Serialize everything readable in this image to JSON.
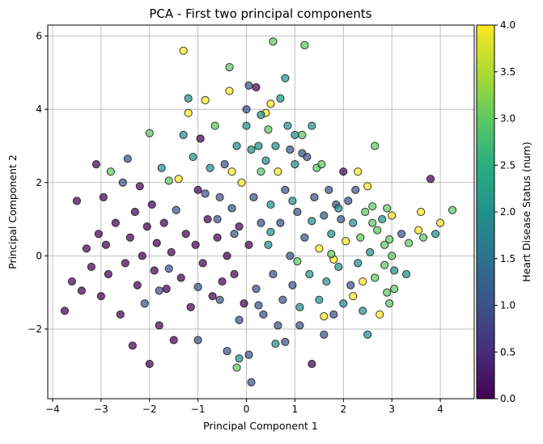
{
  "chart_data": {
    "type": "scatter",
    "title": "PCA - First two principal components",
    "xlabel": "Principal Component 1",
    "ylabel": "Principal Component 2",
    "xlim": [
      -4.1,
      4.7
    ],
    "ylim": [
      -3.9,
      6.3
    ],
    "xticks": [
      -4,
      -3,
      -2,
      -1,
      0,
      1,
      2,
      3,
      4
    ],
    "yticks": [
      -2,
      0,
      2,
      4,
      6
    ],
    "xtick_labels": [
      "−4",
      "−3",
      "−2",
      "−1",
      "0",
      "1",
      "2",
      "3",
      "4"
    ],
    "ytick_labels": [
      "−2",
      "0",
      "2",
      "4",
      "6"
    ],
    "grid": true,
    "colorbar": {
      "label": "Heart Disease Status (num)",
      "min": 0.0,
      "max": 4.0,
      "ticks": [
        0.0,
        0.5,
        1.0,
        1.5,
        2.0,
        2.5,
        3.0,
        3.5,
        4.0
      ],
      "tick_labels": [
        "0.0",
        "0.5",
        "1.0",
        "1.5",
        "2.0",
        "2.5",
        "3.0",
        "3.5",
        "4.0"
      ],
      "colormap": "viridis"
    },
    "points": [
      {
        "x": -3.75,
        "y": -1.5,
        "c": 0
      },
      {
        "x": -3.6,
        "y": -0.7,
        "c": 0
      },
      {
        "x": -3.5,
        "y": 1.5,
        "c": 0
      },
      {
        "x": -3.4,
        "y": -0.95,
        "c": 0
      },
      {
        "x": -3.3,
        "y": 0.2,
        "c": 0
      },
      {
        "x": -3.2,
        "y": -0.3,
        "c": 0
      },
      {
        "x": -3.1,
        "y": 2.5,
        "c": 0
      },
      {
        "x": -3.05,
        "y": 0.6,
        "c": 0
      },
      {
        "x": -3.0,
        "y": -1.1,
        "c": 0
      },
      {
        "x": -2.95,
        "y": 1.6,
        "c": 0
      },
      {
        "x": -2.9,
        "y": 0.3,
        "c": 0
      },
      {
        "x": -2.85,
        "y": -0.5,
        "c": 0
      },
      {
        "x": -2.8,
        "y": 2.3,
        "c": 3
      },
      {
        "x": -2.7,
        "y": 0.9,
        "c": 0
      },
      {
        "x": -2.6,
        "y": -1.6,
        "c": 0
      },
      {
        "x": -2.55,
        "y": 2.0,
        "c": 1
      },
      {
        "x": -2.5,
        "y": -0.2,
        "c": 0
      },
      {
        "x": -2.45,
        "y": 2.65,
        "c": 1
      },
      {
        "x": -2.4,
        "y": 0.5,
        "c": 0
      },
      {
        "x": -2.35,
        "y": -2.45,
        "c": 0
      },
      {
        "x": -2.3,
        "y": 1.2,
        "c": 0
      },
      {
        "x": -2.25,
        "y": -0.8,
        "c": 0
      },
      {
        "x": -2.2,
        "y": 1.9,
        "c": 0
      },
      {
        "x": -2.15,
        "y": 0.0,
        "c": 0
      },
      {
        "x": -2.1,
        "y": -1.3,
        "c": 1
      },
      {
        "x": -2.05,
        "y": 0.8,
        "c": 0
      },
      {
        "x": -2.0,
        "y": 3.35,
        "c": 3
      },
      {
        "x": -2.0,
        "y": -2.95,
        "c": 0
      },
      {
        "x": -1.95,
        "y": 1.4,
        "c": 0
      },
      {
        "x": -1.9,
        "y": -0.4,
        "c": 0
      },
      {
        "x": -1.85,
        "y": 0.35,
        "c": 0
      },
      {
        "x": -1.8,
        "y": -1.9,
        "c": 0
      },
      {
        "x": -1.75,
        "y": 2.4,
        "c": 2
      },
      {
        "x": -1.7,
        "y": 0.9,
        "c": 0
      },
      {
        "x": -1.65,
        "y": -0.9,
        "c": 0
      },
      {
        "x": -1.6,
        "y": 2.05,
        "c": 3
      },
      {
        "x": -1.55,
        "y": 0.1,
        "c": 0
      },
      {
        "x": -1.5,
        "y": -2.3,
        "c": 0
      },
      {
        "x": -1.45,
        "y": 1.25,
        "c": 1
      },
      {
        "x": -1.4,
        "y": 2.1,
        "c": 4
      },
      {
        "x": -1.35,
        "y": -0.6,
        "c": 0
      },
      {
        "x": -1.3,
        "y": 3.3,
        "c": 2
      },
      {
        "x": -1.3,
        "y": 5.6,
        "c": 4
      },
      {
        "x": -1.25,
        "y": 0.6,
        "c": 0
      },
      {
        "x": -1.2,
        "y": 3.9,
        "c": 4
      },
      {
        "x": -1.2,
        "y": 4.3,
        "c": 2
      },
      {
        "x": -1.15,
        "y": -1.4,
        "c": 0
      },
      {
        "x": -1.1,
        "y": 2.7,
        "c": 2
      },
      {
        "x": -1.05,
        "y": 0.3,
        "c": 0
      },
      {
        "x": -1.0,
        "y": 1.8,
        "c": 0
      },
      {
        "x": -1.0,
        "y": -2.3,
        "c": 1
      },
      {
        "x": -0.95,
        "y": 3.2,
        "c": 0
      },
      {
        "x": -0.9,
        "y": -0.2,
        "c": 0
      },
      {
        "x": -0.85,
        "y": 4.25,
        "c": 4
      },
      {
        "x": -0.8,
        "y": 1.0,
        "c": 0
      },
      {
        "x": -0.75,
        "y": 2.4,
        "c": 2
      },
      {
        "x": -0.7,
        "y": -1.1,
        "c": 0
      },
      {
        "x": -0.65,
        "y": 3.55,
        "c": 3
      },
      {
        "x": -0.6,
        "y": 0.5,
        "c": 0
      },
      {
        "x": -0.55,
        "y": 1.6,
        "c": 1
      },
      {
        "x": -0.5,
        "y": -0.7,
        "c": 0
      },
      {
        "x": -0.45,
        "y": 2.5,
        "c": 1
      },
      {
        "x": -0.4,
        "y": 0.0,
        "c": 0
      },
      {
        "x": -0.4,
        "y": -2.6,
        "c": 1
      },
      {
        "x": -0.35,
        "y": 5.15,
        "c": 3
      },
      {
        "x": -0.35,
        "y": 4.5,
        "c": 4
      },
      {
        "x": -0.3,
        "y": 1.3,
        "c": 1
      },
      {
        "x": -0.3,
        "y": 2.3,
        "c": 4
      },
      {
        "x": -0.25,
        "y": -0.5,
        "c": 0
      },
      {
        "x": -0.2,
        "y": 3.0,
        "c": 2
      },
      {
        "x": -0.2,
        "y": -3.05,
        "c": 3
      },
      {
        "x": -0.15,
        "y": 0.8,
        "c": 0
      },
      {
        "x": -0.15,
        "y": -2.8,
        "c": 2
      },
      {
        "x": -0.1,
        "y": 2.0,
        "c": 4
      },
      {
        "x": -0.05,
        "y": -1.3,
        "c": 0
      },
      {
        "x": 0.0,
        "y": 3.55,
        "c": 2
      },
      {
        "x": 0.0,
        "y": 4.0,
        "c": 1
      },
      {
        "x": 0.05,
        "y": 4.65,
        "c": 1
      },
      {
        "x": 0.05,
        "y": 0.3,
        "c": 0
      },
      {
        "x": 0.05,
        "y": -2.7,
        "c": 1
      },
      {
        "x": 0.1,
        "y": -3.45,
        "c": 1
      },
      {
        "x": 0.1,
        "y": 2.9,
        "c": 2
      },
      {
        "x": 0.15,
        "y": 1.6,
        "c": 1
      },
      {
        "x": 0.2,
        "y": 4.6,
        "c": 0
      },
      {
        "x": 0.2,
        "y": -0.9,
        "c": 1
      },
      {
        "x": 0.25,
        "y": 3.0,
        "c": 2
      },
      {
        "x": 0.3,
        "y": 0.9,
        "c": 1
      },
      {
        "x": 0.3,
        "y": 2.3,
        "c": 3
      },
      {
        "x": 0.35,
        "y": -1.6,
        "c": 1
      },
      {
        "x": 0.4,
        "y": 3.9,
        "c": 4
      },
      {
        "x": 0.4,
        "y": 2.6,
        "c": 2
      },
      {
        "x": 0.45,
        "y": 0.3,
        "c": 2
      },
      {
        "x": 0.5,
        "y": 4.15,
        "c": 4
      },
      {
        "x": 0.5,
        "y": 1.4,
        "c": 2
      },
      {
        "x": 0.55,
        "y": 5.85,
        "c": 3
      },
      {
        "x": 0.55,
        "y": -0.5,
        "c": 1
      },
      {
        "x": 0.6,
        "y": 3.0,
        "c": 2
      },
      {
        "x": 0.6,
        "y": -2.4,
        "c": 2
      },
      {
        "x": 0.65,
        "y": 2.3,
        "c": 4
      },
      {
        "x": 0.7,
        "y": 4.3,
        "c": 2
      },
      {
        "x": 0.7,
        "y": 0.9,
        "c": 1
      },
      {
        "x": 0.75,
        "y": -1.2,
        "c": 1
      },
      {
        "x": 0.8,
        "y": 4.85,
        "c": 2
      },
      {
        "x": 0.8,
        "y": 1.8,
        "c": 1
      },
      {
        "x": 0.85,
        "y": 3.55,
        "c": 2
      },
      {
        "x": 0.9,
        "y": 2.9,
        "c": 1
      },
      {
        "x": 0.9,
        "y": 0.0,
        "c": 1
      },
      {
        "x": 0.95,
        "y": -0.8,
        "c": 1
      },
      {
        "x": 1.0,
        "y": 2.5,
        "c": 2
      },
      {
        "x": 1.0,
        "y": 3.3,
        "c": 2
      },
      {
        "x": 1.05,
        "y": 1.2,
        "c": 1
      },
      {
        "x": 1.1,
        "y": -1.9,
        "c": 1
      },
      {
        "x": 1.15,
        "y": 2.8,
        "c": 1
      },
      {
        "x": 1.15,
        "y": 3.3,
        "c": 3
      },
      {
        "x": 1.2,
        "y": 5.75,
        "c": 3
      },
      {
        "x": 1.2,
        "y": 0.5,
        "c": 1
      },
      {
        "x": 1.25,
        "y": 2.7,
        "c": 1
      },
      {
        "x": 1.3,
        "y": -0.5,
        "c": 2
      },
      {
        "x": 1.35,
        "y": 3.55,
        "c": 2
      },
      {
        "x": 1.35,
        "y": -2.95,
        "c": 0
      },
      {
        "x": 1.4,
        "y": 1.6,
        "c": 1
      },
      {
        "x": 1.45,
        "y": 2.4,
        "c": 3
      },
      {
        "x": 1.5,
        "y": 0.2,
        "c": 4
      },
      {
        "x": 1.5,
        "y": -1.2,
        "c": 2
      },
      {
        "x": 1.55,
        "y": 2.5,
        "c": 3
      },
      {
        "x": 1.6,
        "y": 1.1,
        "c": 1
      },
      {
        "x": 1.65,
        "y": -0.7,
        "c": 2
      },
      {
        "x": 1.7,
        "y": 1.8,
        "c": 1
      },
      {
        "x": 1.75,
        "y": 0.6,
        "c": 2
      },
      {
        "x": 1.8,
        "y": -1.6,
        "c": 1
      },
      {
        "x": 1.85,
        "y": 1.4,
        "c": 1
      },
      {
        "x": 1.9,
        "y": -0.3,
        "c": 2
      },
      {
        "x": 1.95,
        "y": 1.0,
        "c": 1
      },
      {
        "x": 2.0,
        "y": -1.3,
        "c": 2
      },
      {
        "x": 2.0,
        "y": 2.3,
        "c": 0
      },
      {
        "x": 2.05,
        "y": 0.4,
        "c": 4
      },
      {
        "x": 2.1,
        "y": 1.5,
        "c": 1
      },
      {
        "x": 2.15,
        "y": -0.8,
        "c": 1
      },
      {
        "x": 2.2,
        "y": 0.9,
        "c": 2
      },
      {
        "x": 2.25,
        "y": 1.8,
        "c": 1
      },
      {
        "x": 2.3,
        "y": 2.3,
        "c": 4
      },
      {
        "x": 2.3,
        "y": -0.2,
        "c": 2
      },
      {
        "x": 2.35,
        "y": 0.5,
        "c": 3
      },
      {
        "x": 2.4,
        "y": -1.5,
        "c": 2
      },
      {
        "x": 2.45,
        "y": 1.2,
        "c": 3
      },
      {
        "x": 2.5,
        "y": 1.9,
        "c": 4
      },
      {
        "x": 2.5,
        "y": -2.15,
        "c": 2
      },
      {
        "x": 2.55,
        "y": 0.1,
        "c": 2
      },
      {
        "x": 2.6,
        "y": 1.35,
        "c": 3
      },
      {
        "x": 2.65,
        "y": -0.6,
        "c": 3
      },
      {
        "x": 2.65,
        "y": 3.0,
        "c": 3
      },
      {
        "x": 2.7,
        "y": 0.7,
        "c": 3
      },
      {
        "x": 2.75,
        "y": -1.6,
        "c": 4
      },
      {
        "x": 2.8,
        "y": 1.0,
        "c": 2
      },
      {
        "x": 2.85,
        "y": 0.3,
        "c": 3
      },
      {
        "x": 2.9,
        "y": 1.3,
        "c": 3
      },
      {
        "x": 2.9,
        "y": -1.0,
        "c": 3
      },
      {
        "x": 2.95,
        "y": -1.3,
        "c": 3
      },
      {
        "x": 3.0,
        "y": 0.0,
        "c": 3
      },
      {
        "x": 3.0,
        "y": 1.1,
        "c": 4
      },
      {
        "x": 3.05,
        "y": -0.4,
        "c": 2
      },
      {
        "x": 3.05,
        "y": -0.9,
        "c": 3
      },
      {
        "x": 3.2,
        "y": 0.6,
        "c": 1
      },
      {
        "x": 3.3,
        "y": -0.5,
        "c": 2
      },
      {
        "x": 3.55,
        "y": 0.7,
        "c": 4
      },
      {
        "x": 3.6,
        "y": 1.2,
        "c": 4
      },
      {
        "x": 3.65,
        "y": 0.5,
        "c": 3
      },
      {
        "x": 3.8,
        "y": 2.1,
        "c": 0
      },
      {
        "x": 3.9,
        "y": 0.6,
        "c": 2
      },
      {
        "x": 4.0,
        "y": 0.9,
        "c": 4
      },
      {
        "x": 4.25,
        "y": 1.25,
        "c": 3
      },
      {
        "x": 0.3,
        "y": 3.85,
        "c": 2
      },
      {
        "x": 0.45,
        "y": 3.45,
        "c": 3
      },
      {
        "x": 1.6,
        "y": -2.15,
        "c": 1
      },
      {
        "x": 1.1,
        "y": -1.4,
        "c": 2
      },
      {
        "x": -0.6,
        "y": 1.0,
        "c": 1
      },
      {
        "x": 0.8,
        "y": -2.35,
        "c": 1
      },
      {
        "x": 1.8,
        "y": -0.1,
        "c": 4
      },
      {
        "x": 2.4,
        "y": -0.7,
        "c": 4
      },
      {
        "x": 1.6,
        "y": -1.65,
        "c": 4
      },
      {
        "x": 2.2,
        "y": -1.1,
        "c": 4
      },
      {
        "x": 1.05,
        "y": -0.15,
        "c": 3
      },
      {
        "x": 1.75,
        "y": 0.05,
        "c": 3
      },
      {
        "x": 2.6,
        "y": 0.9,
        "c": 3
      },
      {
        "x": 2.95,
        "y": 0.45,
        "c": 3
      },
      {
        "x": 3.35,
        "y": 0.35,
        "c": 3
      },
      {
        "x": -1.6,
        "y": -0.35,
        "c": 1
      },
      {
        "x": -1.0,
        "y": -0.85,
        "c": 1
      },
      {
        "x": -0.55,
        "y": -1.2,
        "c": 1
      },
      {
        "x": 0.25,
        "y": -1.35,
        "c": 1
      },
      {
        "x": 0.95,
        "y": 1.5,
        "c": 2
      },
      {
        "x": 1.35,
        "y": 0.95,
        "c": 2
      },
      {
        "x": -1.8,
        "y": -0.95,
        "c": 1
      },
      {
        "x": -0.25,
        "y": 0.6,
        "c": 1
      },
      {
        "x": 0.5,
        "y": 0.65,
        "c": 2
      },
      {
        "x": -0.85,
        "y": 1.7,
        "c": 1
      },
      {
        "x": 1.9,
        "y": 1.3,
        "c": 2
      },
      {
        "x": 2.85,
        "y": -0.25,
        "c": 3
      },
      {
        "x": -0.15,
        "y": -1.75,
        "c": 1
      },
      {
        "x": 0.65,
        "y": -1.9,
        "c": 1
      }
    ]
  }
}
